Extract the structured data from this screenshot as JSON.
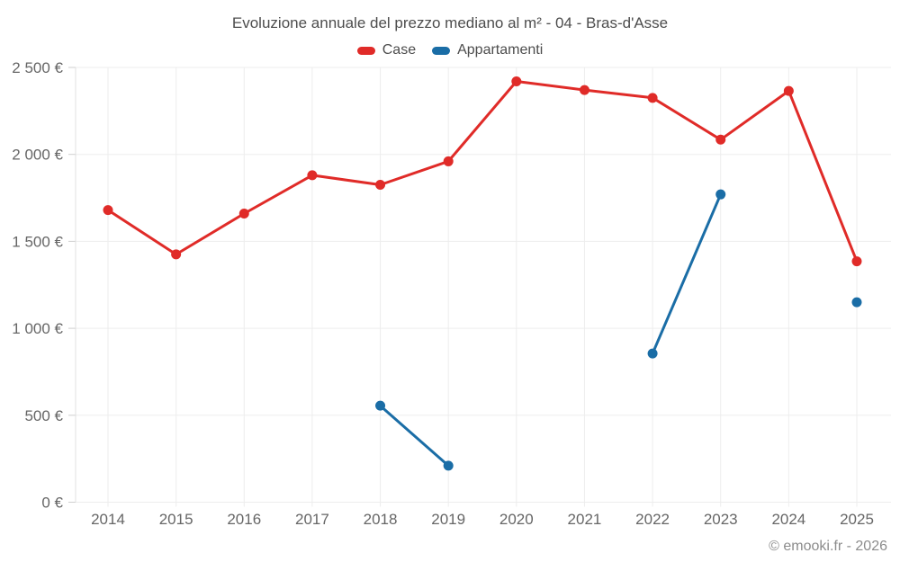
{
  "chart_data": {
    "type": "line",
    "title": "Evoluzione annuale del prezzo mediano al m² - 04 - Bras-d'Asse",
    "xlabel": "",
    "ylabel": "",
    "categories": [
      "2014",
      "2015",
      "2016",
      "2017",
      "2018",
      "2019",
      "2020",
      "2021",
      "2022",
      "2023",
      "2024",
      "2025"
    ],
    "series": [
      {
        "name": "Case",
        "color": "#e02b28",
        "values": [
          1680,
          1425,
          1660,
          1880,
          1825,
          1960,
          2420,
          2370,
          2325,
          2085,
          2365,
          1385
        ]
      },
      {
        "name": "Appartamenti",
        "color": "#1a6da6",
        "values": [
          null,
          null,
          null,
          null,
          555,
          210,
          null,
          null,
          855,
          1770,
          null,
          1150
        ]
      }
    ],
    "ylim": [
      0,
      2500
    ],
    "y_ticks": [
      {
        "value": 0,
        "label": "0 €"
      },
      {
        "value": 500,
        "label": "500 €"
      },
      {
        "value": 1000,
        "label": "1 000 €"
      },
      {
        "value": 1500,
        "label": "1 500 €"
      },
      {
        "value": 2000,
        "label": "2 000 €"
      },
      {
        "value": 2500,
        "label": "2 500 €"
      }
    ],
    "grid": true,
    "legend_position": "top"
  },
  "footer": {
    "copyright": "© emooki.fr - 2026"
  },
  "colors": {
    "background": "#ffffff",
    "grid": "#ededed",
    "axis_line": "#e0e0e0",
    "tick": "#cfcfcf",
    "title_text": "#4d4d4d",
    "axis_text": "#666666",
    "footer_text": "#8c8c8c"
  }
}
